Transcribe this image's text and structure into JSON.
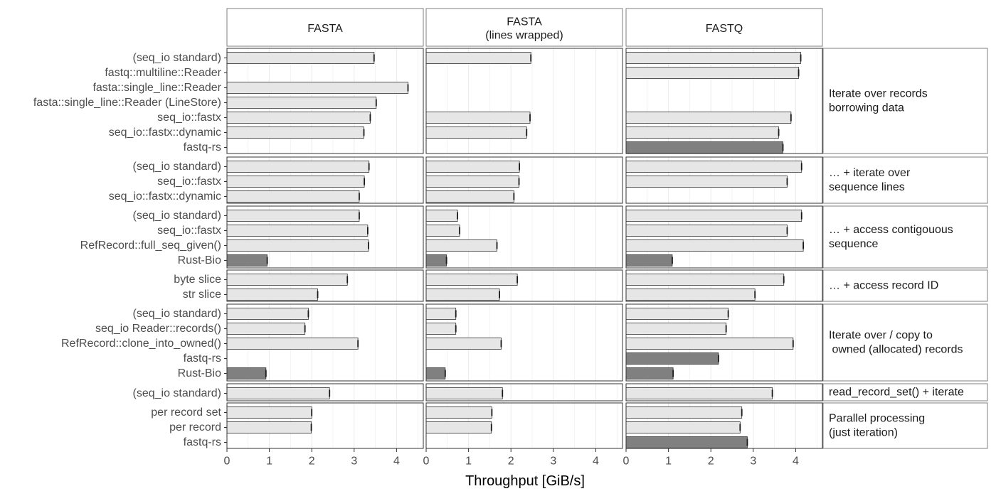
{
  "chart_data": {
    "type": "bar",
    "orientation": "horizontal",
    "xlabel": "Throughput [GiB/s]",
    "xlim": [
      0,
      4.6
    ],
    "xticks": [
      0,
      1,
      2,
      3,
      4
    ],
    "grid": true,
    "colors": {
      "light": "#e6e6e6",
      "dark": "#808080",
      "grid": "#ebebeb",
      "frame": "#7f7f7f",
      "border": "#333333"
    },
    "columns": [
      {
        "key": "fasta",
        "label": "FASTA"
      },
      {
        "key": "fasta_wrapped",
        "label": "FASTA\n(lines wrapped)"
      },
      {
        "key": "fastq",
        "label": "FASTQ"
      }
    ],
    "groups": [
      {
        "label": "Iterate over records\nborrowing data",
        "rows": [
          {
            "label": "(seq_io standard)",
            "values": [
              3.47,
              2.47,
              4.12
            ],
            "dark": false
          },
          {
            "label": "fastq::multiline::Reader",
            "values": [
              null,
              null,
              4.07
            ],
            "dark": false
          },
          {
            "label": "fasta::single_line::Reader",
            "values": [
              4.27,
              null,
              null
            ],
            "dark": false
          },
          {
            "label": "fasta::single_line::Reader (LineStore)",
            "values": [
              3.52,
              null,
              null
            ],
            "dark": false
          },
          {
            "label": "seq_io::fastx",
            "values": [
              3.38,
              2.45,
              3.89
            ],
            "dark": false
          },
          {
            "label": "seq_io::fastx::dynamic",
            "values": [
              3.23,
              2.37,
              3.6
            ],
            "dark": false
          },
          {
            "label": "fastq-rs",
            "values": [
              null,
              null,
              3.7
            ],
            "dark": true
          }
        ]
      },
      {
        "label": "… + iterate over\nsequence lines",
        "rows": [
          {
            "label": "(seq_io standard)",
            "values": [
              3.35,
              2.2,
              4.14
            ],
            "dark": false
          },
          {
            "label": "seq_io::fastx",
            "values": [
              3.24,
              2.19,
              3.8
            ],
            "dark": false
          },
          {
            "label": "seq_io::fastx::dynamic",
            "values": [
              3.12,
              2.07,
              null
            ],
            "dark": false
          }
        ]
      },
      {
        "label": "… + access contigouous\nsequence",
        "rows": [
          {
            "label": "(seq_io standard)",
            "values": [
              3.12,
              0.74,
              4.14
            ],
            "dark": false
          },
          {
            "label": "seq_io::fastx",
            "values": [
              3.32,
              0.79,
              3.8
            ],
            "dark": false
          },
          {
            "label": "RefRecord::full_seq_given()",
            "values": [
              3.34,
              1.67,
              4.18
            ],
            "dark": false
          },
          {
            "label": "Rust-Bio",
            "values": [
              0.95,
              0.48,
              1.09
            ],
            "dark": true
          }
        ]
      },
      {
        "label": "… + access record ID",
        "rows": [
          {
            "label": "byte slice",
            "values": [
              2.84,
              2.15,
              3.72
            ],
            "dark": false
          },
          {
            "label": "str slice",
            "values": [
              2.14,
              1.73,
              3.04
            ],
            "dark": false
          }
        ]
      },
      {
        "label": "Iterate over / copy to\n owned (allocated) records",
        "rows": [
          {
            "label": "(seq_io standard)",
            "values": [
              1.92,
              0.7,
              2.41
            ],
            "dark": false
          },
          {
            "label": "seq_io Reader::records()",
            "values": [
              1.84,
              0.7,
              2.36
            ],
            "dark": false
          },
          {
            "label": "RefRecord::clone_into_owned()",
            "values": [
              3.09,
              1.77,
              3.94
            ],
            "dark": false
          },
          {
            "label": "fastq-rs",
            "values": [
              null,
              null,
              2.18
            ],
            "dark": true
          },
          {
            "label": "Rust-Bio",
            "values": [
              0.92,
              0.45,
              1.11
            ],
            "dark": true
          }
        ]
      },
      {
        "label": "read_record_set() + iterate",
        "rows": [
          {
            "label": "(seq_io standard)",
            "values": [
              2.42,
              1.8,
              3.45
            ],
            "dark": false
          }
        ]
      },
      {
        "label": "Parallel processing\n(just iteration)",
        "rows": [
          {
            "label": "per record set",
            "values": [
              2.0,
              1.55,
              2.73
            ],
            "dark": false
          },
          {
            "label": "per record",
            "values": [
              1.99,
              1.54,
              2.69
            ],
            "dark": false
          },
          {
            "label": "fastq-rs",
            "values": [
              null,
              null,
              2.86
            ],
            "dark": true
          }
        ]
      }
    ]
  }
}
